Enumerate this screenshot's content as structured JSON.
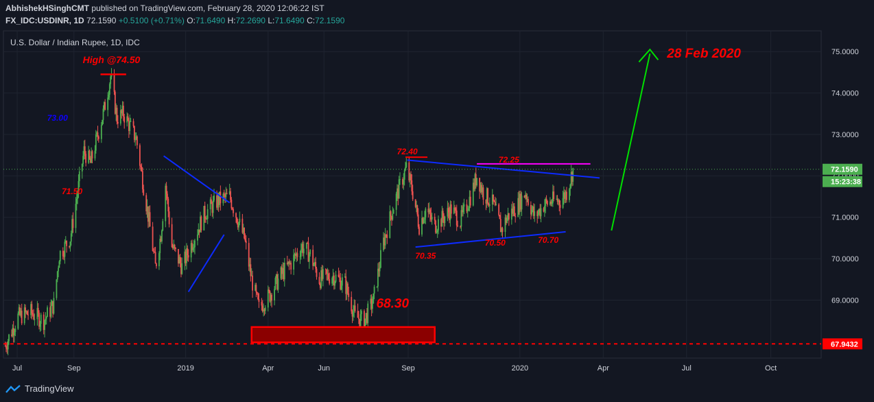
{
  "header": {
    "author": "AbhishekHSinghCMT",
    "published": "published on TradingView.com, February 28, 2020 12:06:22 IST",
    "symbol": "FX_IDC:USDINR, 1D",
    "last": "72.1590",
    "change": "+0.5100 (+0.71%)",
    "o_label": "O:",
    "o": "71.6490",
    "h_label": "H:",
    "h": "72.2690",
    "l_label": "L:",
    "l": "71.6490",
    "c_label": "C:",
    "c": "72.1590"
  },
  "footer": {
    "brand": "TradingView"
  },
  "colors": {
    "background": "#131722",
    "up": "#4caf50",
    "down": "#ef5350",
    "grid": "#1f2430",
    "axis_text": "#d1d4dc"
  },
  "chart_data": {
    "type": "candlestick",
    "title": "U.S. Dollar / Indian Rupee, 1D, IDC",
    "ylim": [
      67.6,
      75.5
    ],
    "y_ticks": [
      "75.0000",
      "74.0000",
      "73.0000",
      "72.0000",
      "71.0000",
      "70.0000",
      "69.0000"
    ],
    "x_ticks": [
      {
        "label": "Jul",
        "date": "2018-07-01"
      },
      {
        "label": "Sep",
        "date": "2018-09-01"
      },
      {
        "label": "2019",
        "date": "2019-01-01"
      },
      {
        "label": "Apr",
        "date": "2019-04-01"
      },
      {
        "label": "Jun",
        "date": "2019-06-01"
      },
      {
        "label": "Sep",
        "date": "2019-09-01"
      },
      {
        "label": "2020",
        "date": "2020-01-01"
      },
      {
        "label": "Apr",
        "date": "2020-04-01"
      },
      {
        "label": "Jul",
        "date": "2020-07-01"
      },
      {
        "label": "Oct",
        "date": "2020-10-01"
      }
    ],
    "x_range": [
      "2018-06-16",
      "2020-11-25"
    ],
    "price_labels": {
      "last": "72.1590",
      "countdown": "15:23:38",
      "support": "67.9432"
    },
    "closes_path": [
      [
        "2018-06-18",
        67.9
      ],
      [
        "2018-07-02",
        68.6
      ],
      [
        "2018-07-16",
        68.7
      ],
      [
        "2018-07-30",
        68.5
      ],
      [
        "2018-08-10",
        68.9
      ],
      [
        "2018-08-16",
        70.1
      ],
      [
        "2018-08-28",
        70.5
      ],
      [
        "2018-09-05",
        71.6
      ],
      [
        "2018-09-12",
        72.6
      ],
      [
        "2018-09-19",
        72.3
      ],
      [
        "2018-09-26",
        72.9
      ],
      [
        "2018-10-04",
        73.6
      ],
      [
        "2018-10-11",
        74.4
      ],
      [
        "2018-10-18",
        73.4
      ],
      [
        "2018-10-25",
        73.5
      ],
      [
        "2018-11-01",
        73.2
      ],
      [
        "2018-11-08",
        72.9
      ],
      [
        "2018-11-15",
        71.9
      ],
      [
        "2018-11-22",
        70.9
      ],
      [
        "2018-11-29",
        69.8
      ],
      [
        "2018-12-05",
        70.6
      ],
      [
        "2018-12-10",
        71.8
      ],
      [
        "2018-12-17",
        70.3
      ],
      [
        "2018-12-28",
        69.8
      ],
      [
        "2019-01-10",
        70.5
      ],
      [
        "2019-01-22",
        71.1
      ],
      [
        "2019-02-05",
        71.4
      ],
      [
        "2019-02-18",
        71.5
      ],
      [
        "2019-02-26",
        71.0
      ],
      [
        "2019-03-06",
        70.5
      ],
      [
        "2019-03-14",
        69.5
      ],
      [
        "2019-03-22",
        68.8
      ],
      [
        "2019-04-02",
        69.1
      ],
      [
        "2019-04-15",
        69.6
      ],
      [
        "2019-04-26",
        69.9
      ],
      [
        "2019-05-08",
        70.3
      ],
      [
        "2019-05-17",
        70.1
      ],
      [
        "2019-05-27",
        69.5
      ],
      [
        "2019-06-10",
        69.6
      ],
      [
        "2019-06-24",
        69.4
      ],
      [
        "2019-07-05",
        68.6
      ],
      [
        "2019-07-15",
        68.5
      ],
      [
        "2019-07-25",
        69.0
      ],
      [
        "2019-08-05",
        70.4
      ],
      [
        "2019-08-15",
        71.2
      ],
      [
        "2019-08-22",
        71.7
      ],
      [
        "2019-08-30",
        72.2
      ],
      [
        "2019-09-06",
        71.6
      ],
      [
        "2019-09-13",
        70.8
      ],
      [
        "2019-09-20",
        71.2
      ],
      [
        "2019-09-30",
        70.8
      ],
      [
        "2019-10-10",
        71.0
      ],
      [
        "2019-10-18",
        71.2
      ],
      [
        "2019-10-28",
        70.9
      ],
      [
        "2019-11-08",
        71.5
      ],
      [
        "2019-11-15",
        72.0
      ],
      [
        "2019-11-22",
        71.6
      ],
      [
        "2019-12-03",
        71.3
      ],
      [
        "2019-12-12",
        70.7
      ],
      [
        "2019-12-18",
        71.0
      ],
      [
        "2019-12-30",
        71.3
      ],
      [
        "2020-01-07",
        71.6
      ],
      [
        "2020-01-17",
        71.0
      ],
      [
        "2020-01-27",
        71.3
      ],
      [
        "2020-02-06",
        71.4
      ],
      [
        "2020-02-14",
        71.4
      ],
      [
        "2020-02-21",
        71.6
      ],
      [
        "2020-02-28",
        72.15
      ]
    ],
    "annotations": [
      {
        "text": "High @74.50",
        "date": "2018-10-12",
        "y": 74.72,
        "color": "#ff0000"
      },
      {
        "text": "73.00",
        "date": "2018-08-14",
        "y": 73.33,
        "color": "#0d00ff"
      },
      {
        "text": "71.50",
        "date": "2018-08-30",
        "y": 71.56,
        "color": "#ff0000"
      },
      {
        "text": "72.40",
        "date": "2019-08-31",
        "y": 72.52,
        "color": "#ff0000"
      },
      {
        "text": "72.25",
        "date": "2019-12-20",
        "y": 72.32,
        "color": "#ff0000"
      },
      {
        "text": "70.35",
        "date": "2019-09-20",
        "y": 70.0,
        "color": "#ff0000"
      },
      {
        "text": "70.50",
        "date": "2019-12-05",
        "y": 70.32,
        "color": "#ff0000"
      },
      {
        "text": "70.70",
        "date": "2020-02-01",
        "y": 70.38,
        "color": "#ff0000"
      },
      {
        "text": "68.30",
        "date": "2019-08-15",
        "y": 68.82,
        "color": "#ff0000"
      },
      {
        "text": "28 Feb 2020",
        "date": "2020-07-20",
        "y": 74.85,
        "color": "#ff0000"
      }
    ]
  }
}
